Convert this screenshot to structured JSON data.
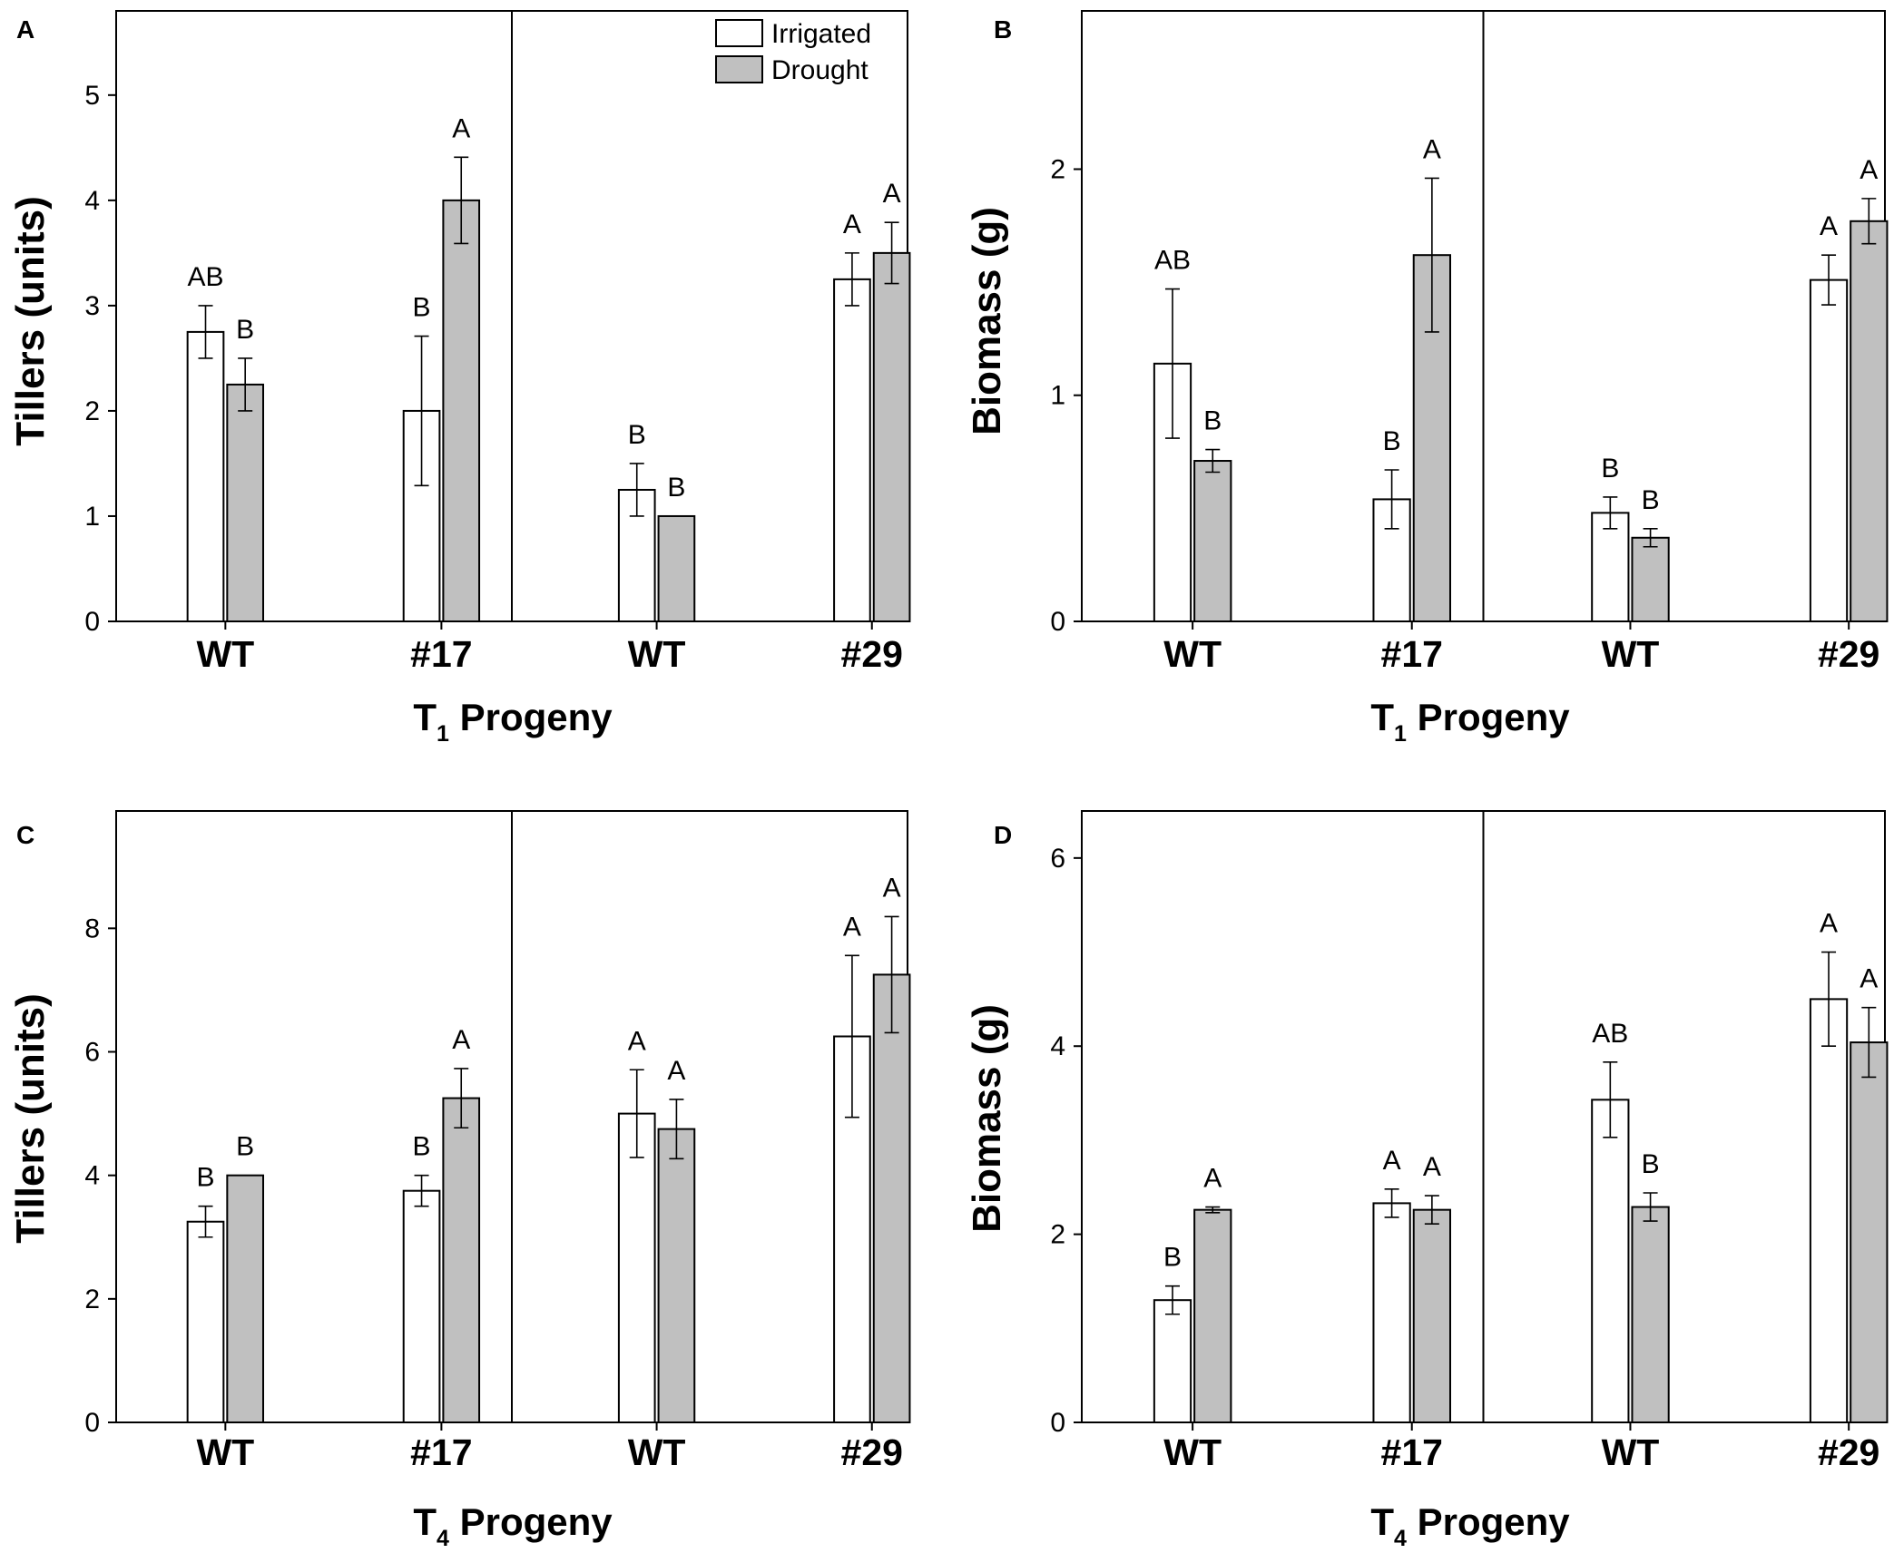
{
  "legend": {
    "irrigated_label": "Irrigated",
    "drought_label": "Drought",
    "irrigated_color": "#ffffff",
    "drought_color": "#c0c0c0"
  },
  "chart_data": [
    {
      "panel": "A",
      "type": "bar",
      "ylabel": "Tillers (units)",
      "xlabel_prefix": "T",
      "xlabel_sub": "1",
      "xlabel_suffix": " Progeny",
      "ylim": [
        0,
        5.8
      ],
      "yticks": [
        0,
        1,
        2,
        3,
        4,
        5
      ],
      "categories": [
        "WT",
        "#17",
        "WT",
        "#29"
      ],
      "series": [
        {
          "name": "Irrigated",
          "values": [
            2.75,
            2.0,
            1.25,
            3.25
          ],
          "errors": [
            0.25,
            0.71,
            0.25,
            0.25
          ],
          "letters": [
            "AB",
            "B",
            "B",
            "A"
          ]
        },
        {
          "name": "Drought",
          "values": [
            2.25,
            4.0,
            1.0,
            3.5
          ],
          "errors": [
            0.25,
            0.41,
            0.0,
            0.29
          ],
          "letters": [
            "B",
            "A",
            "B",
            "A"
          ]
        }
      ],
      "show_legend": true
    },
    {
      "panel": "B",
      "type": "bar",
      "ylabel": "Biomass (g)",
      "xlabel_prefix": "T",
      "xlabel_sub": "1",
      "xlabel_suffix": " Progeny",
      "ylim": [
        0,
        2.7
      ],
      "yticks": [
        0,
        1,
        2
      ],
      "categories": [
        "WT",
        "#17",
        "WT",
        "#29"
      ],
      "series": [
        {
          "name": "Irrigated",
          "values": [
            1.14,
            0.54,
            0.48,
            1.51
          ],
          "errors": [
            0.33,
            0.13,
            0.07,
            0.11
          ],
          "letters": [
            "AB",
            "B",
            "B",
            "A"
          ]
        },
        {
          "name": "Drought",
          "values": [
            0.71,
            1.62,
            0.37,
            1.77
          ],
          "errors": [
            0.05,
            0.34,
            0.04,
            0.1
          ],
          "letters": [
            "B",
            "A",
            "B",
            "A"
          ]
        }
      ],
      "show_legend": false
    },
    {
      "panel": "C",
      "type": "bar",
      "ylabel": "Tillers (units)",
      "xlabel_prefix": "T",
      "xlabel_sub": "4",
      "xlabel_suffix": " Progeny",
      "ylim": [
        0,
        9.9
      ],
      "yticks": [
        0,
        2,
        4,
        6,
        8
      ],
      "categories": [
        "WT",
        "#17",
        "WT",
        "#29"
      ],
      "series": [
        {
          "name": "Irrigated",
          "values": [
            3.25,
            3.75,
            5.0,
            6.25
          ],
          "errors": [
            0.25,
            0.25,
            0.71,
            1.31
          ],
          "letters": [
            "B",
            "B",
            "A",
            "A"
          ]
        },
        {
          "name": "Drought",
          "values": [
            4.0,
            5.25,
            4.75,
            7.25
          ],
          "errors": [
            0.0,
            0.48,
            0.48,
            0.94
          ],
          "letters": [
            "B",
            "A",
            "A",
            "A"
          ]
        }
      ],
      "show_legend": false
    },
    {
      "panel": "D",
      "type": "bar",
      "ylabel": "Biomass (g)",
      "xlabel_prefix": "T",
      "xlabel_sub": "4",
      "xlabel_suffix": " Progeny",
      "ylim": [
        0,
        6.5
      ],
      "yticks": [
        0,
        2,
        4,
        6
      ],
      "categories": [
        "WT",
        "#17",
        "WT",
        "#29"
      ],
      "series": [
        {
          "name": "Irrigated",
          "values": [
            1.3,
            2.33,
            3.43,
            4.5
          ],
          "errors": [
            0.15,
            0.15,
            0.4,
            0.5
          ],
          "letters": [
            "B",
            "A",
            "AB",
            "A"
          ]
        },
        {
          "name": "Drought",
          "values": [
            2.26,
            2.26,
            2.29,
            4.04
          ],
          "errors": [
            0.03,
            0.15,
            0.15,
            0.37
          ],
          "letters": [
            "A",
            "A",
            "B",
            "A"
          ]
        }
      ],
      "show_legend": false
    }
  ]
}
